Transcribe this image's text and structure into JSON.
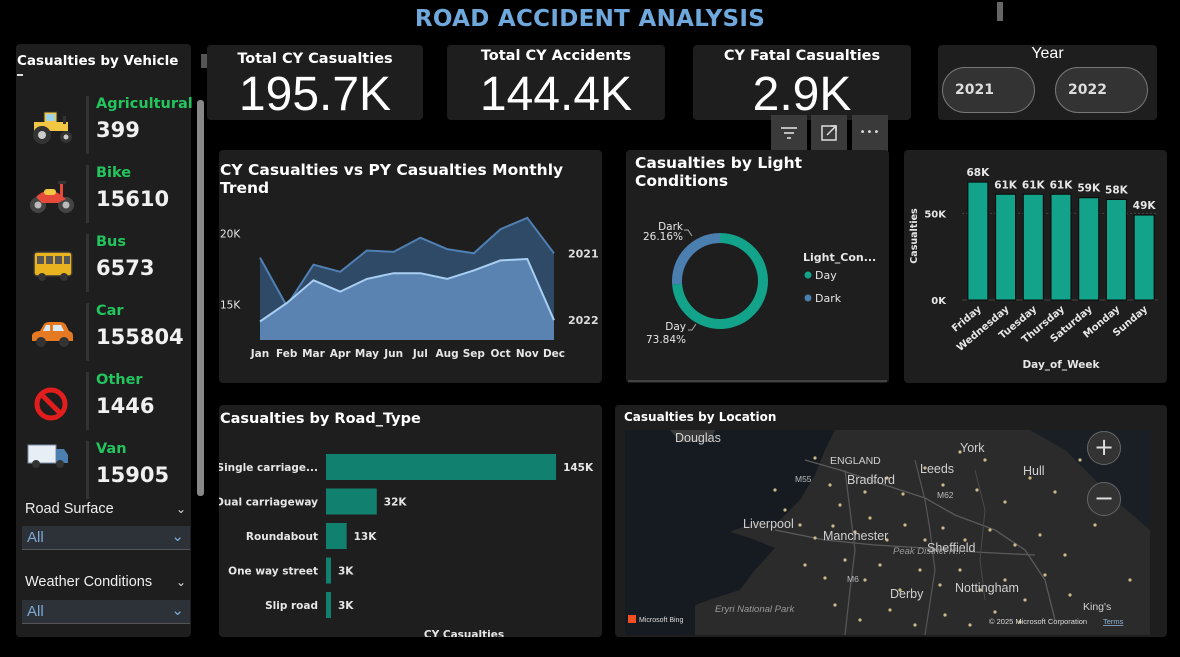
{
  "title": "ROAD ACCIDENT ANALYSIS",
  "sidebar": {
    "title": "Casualties by Vehicle",
    "vehicles": [
      {
        "name": "Agricultural",
        "value": "399",
        "icon": "tractor-icon"
      },
      {
        "name": "Bike",
        "value": "15610",
        "icon": "motorbike-icon"
      },
      {
        "name": "Bus",
        "value": "6573",
        "icon": "bus-icon"
      },
      {
        "name": "Car",
        "value": "155804",
        "icon": "car-icon"
      },
      {
        "name": "Other",
        "value": "1446",
        "icon": "prohibited-icon"
      },
      {
        "name": "Van",
        "value": "15905",
        "icon": "van-icon"
      }
    ],
    "road_surface": {
      "label": "Road Surface",
      "value": "All"
    },
    "weather": {
      "label": "Weather Conditions",
      "value": "All"
    }
  },
  "kpis": [
    {
      "title": "Total CY Casualties",
      "value": "195.7K"
    },
    {
      "title": "Total CY Accidents",
      "value": "144.4K"
    },
    {
      "title": "CY Fatal Casualties",
      "value": "2.9K"
    }
  ],
  "year": {
    "title": "Year",
    "options": [
      "2021",
      "2022"
    ]
  },
  "visual_header": {
    "filter_icon": "filter-icon",
    "focus_icon": "focus-mode-icon",
    "more": "•••"
  },
  "colors": {
    "accent": "#6fa8dc",
    "teal": "#13a38b",
    "bar_teal": "#12806f",
    "green_text": "#22c55e",
    "line_2021": "#2f4a66",
    "line_2022": "#5e86b5"
  },
  "chart_data": [
    {
      "type": "area",
      "title": "CY Casualties vs PY Casualties Monthly Trend",
      "categories": [
        "Jan",
        "Feb",
        "Mar",
        "Apr",
        "May",
        "Jun",
        "Jul",
        "Aug",
        "Sep",
        "Oct",
        "Nov",
        "Dec"
      ],
      "series": [
        {
          "name": "2021",
          "values": [
            18300,
            14900,
            17800,
            17300,
            18800,
            18700,
            19700,
            18900,
            18600,
            20300,
            21100,
            18600
          ]
        },
        {
          "name": "2022",
          "values": [
            13800,
            15100,
            16700,
            15900,
            16800,
            17200,
            17200,
            16800,
            17400,
            18100,
            18200,
            13900
          ]
        }
      ],
      "yticks": [
        {
          "label": "20K",
          "value": 20000
        },
        {
          "label": "15K",
          "value": 15000
        }
      ],
      "ylim": [
        12500,
        22000
      ]
    },
    {
      "type": "pie",
      "title": "Casualties by Light Conditions",
      "legend_title": "Light_Con...",
      "slices": [
        {
          "name": "Day",
          "pct": 73.84,
          "label": "73.84%",
          "color": "#13a38b"
        },
        {
          "name": "Dark",
          "pct": 26.16,
          "label": "26.16%",
          "color": "#4a7fb0"
        }
      ]
    },
    {
      "type": "bar",
      "title": "",
      "categories": [
        "Friday",
        "Wednesday",
        "Tuesday",
        "Thursday",
        "Saturday",
        "Monday",
        "Sunday"
      ],
      "values": [
        68,
        61,
        61,
        61,
        59,
        58,
        49
      ],
      "labels": [
        "68K",
        "61K",
        "61K",
        "61K",
        "59K",
        "58K",
        "49K"
      ],
      "xlabel": "Day_of_Week",
      "ylabel": "Casualties",
      "yticks": [
        {
          "label": "50K",
          "value": 50
        },
        {
          "label": "0K",
          "value": 0
        }
      ],
      "ylim": [
        0,
        75
      ]
    },
    {
      "type": "bar",
      "title": "Casualties by Road_Type",
      "orientation": "horizontal",
      "categories": [
        "Single carriage...",
        "Dual carriageway",
        "Roundabout",
        "One way street",
        "Slip road"
      ],
      "values": [
        145,
        32,
        13,
        3,
        3
      ],
      "labels": [
        "145K",
        "32K",
        "13K",
        "3K",
        "3K"
      ],
      "xlabel": "CY Casualties",
      "xlim": [
        0,
        150
      ]
    }
  ],
  "map": {
    "title": "Casualties by Location",
    "places": [
      "Douglas",
      "York",
      "ENGLAND",
      "Bradford",
      "Leeds",
      "Hull",
      "M55",
      "M62",
      "Liverpool",
      "Manchester",
      "Sheffield",
      "Peak District N.P.",
      "M6",
      "Nottingham",
      "Derby",
      "Eryri National Park",
      "King's"
    ],
    "attribution": "© 2025 Microsoft Corporation",
    "terms": "Terms",
    "bing": "Microsoft Bing",
    "zoom_in": "+",
    "zoom_out": "−"
  }
}
